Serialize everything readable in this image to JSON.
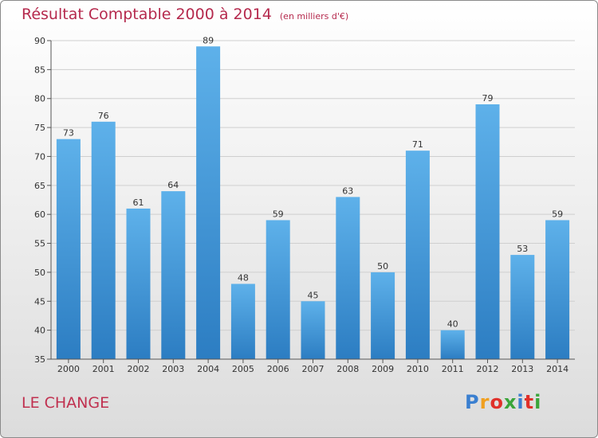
{
  "title": "Résultat Comptable 2000 à 2014",
  "subtitle": "(en milliers d'€)",
  "commune": "LE CHANGE",
  "logo_text": "Proxiti",
  "chart_data": {
    "type": "bar",
    "title": "Résultat Comptable 2000 à 2014",
    "subtitle": "(en milliers d'€)",
    "categories": [
      "2000",
      "2001",
      "2002",
      "2003",
      "2004",
      "2005",
      "2006",
      "2007",
      "2008",
      "2009",
      "2010",
      "2011",
      "2012",
      "2013",
      "2014"
    ],
    "values": [
      73,
      76,
      61,
      64,
      89,
      48,
      59,
      45,
      63,
      50,
      71,
      40,
      79,
      53,
      59
    ],
    "ylim": [
      35,
      90
    ],
    "yticks": [
      35,
      40,
      45,
      50,
      55,
      60,
      65,
      70,
      75,
      80,
      85,
      90
    ],
    "grid": true,
    "bar_color": "#3a8fd6",
    "bar_top_color": "#5aaee8"
  }
}
